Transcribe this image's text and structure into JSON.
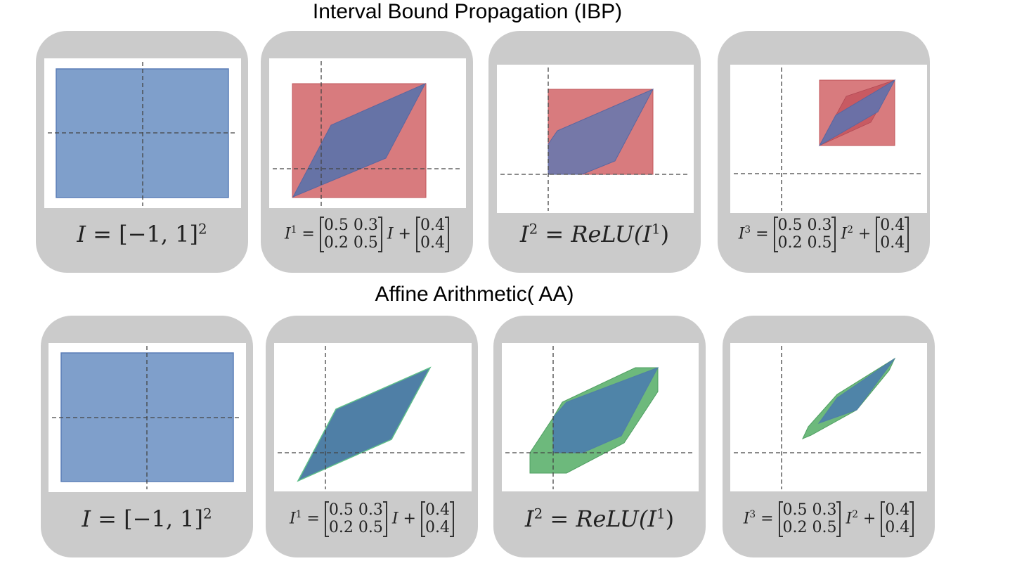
{
  "titles": {
    "ibp": "Interval Bound Propagation (IBP)",
    "aa": "Affine Arithmetic( AA)"
  },
  "formulas": {
    "input": {
      "lhs": "I",
      "rhs": "= [−1, 1]",
      "sup": "2"
    },
    "affine1": {
      "lhs": "I",
      "sup": "1",
      "eq": "=",
      "m1": [
        "0.5  0.3",
        "0.2  0.5"
      ],
      "var": "I",
      "var_sup": "",
      "plus": "+",
      "b": [
        "0.4",
        "0.4"
      ]
    },
    "relu": {
      "lhs": "I",
      "sup": "2",
      "rhs": "= ReLU(I",
      "inner_sup": "1",
      "close": ")"
    },
    "affine3": {
      "lhs": "I",
      "sup": "3",
      "eq": "=",
      "m1": [
        "0.5  0.3",
        "0.2  0.5"
      ],
      "var": "I",
      "var_sup": "2",
      "plus": "+",
      "b": [
        "0.4",
        "0.4"
      ]
    }
  },
  "colors": {
    "panel_bg": "#cbcbcb",
    "input_blue": "#7f9fcb",
    "ibp_red": "#d87b7e",
    "overlay_blue": "#6673a6",
    "aa_blue": "#4f7fa6",
    "aa_green": "#6db97c",
    "axis": "#444444"
  }
}
